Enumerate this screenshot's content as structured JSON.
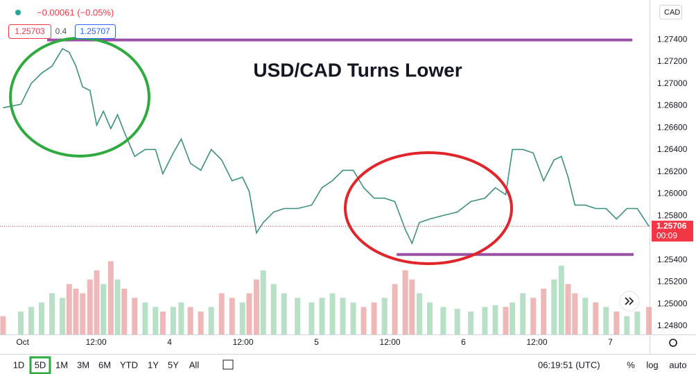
{
  "ui": {
    "change": "−0.00061 (−0.05%)",
    "bid": "1.25703",
    "spread": "0.4",
    "ask": "1.25707",
    "currency": "CAD",
    "ranges": [
      "1D",
      "5D",
      "1M",
      "3M",
      "6M",
      "YTD",
      "1Y",
      "5Y",
      "All"
    ],
    "selected_range": "5D",
    "clock": "06:19:51 (UTC)",
    "percent": "%",
    "log": "log",
    "auto": "auto"
  },
  "chart_data": {
    "type": "line",
    "title": "USD/CAD Turns Lower",
    "x": [
      -3.2,
      -0.3,
      1.4,
      3.1,
      4.8,
      6.5,
      7.6,
      8.7,
      9.8,
      11.0,
      12.1,
      13.2,
      14.4,
      15.5,
      16.6,
      18.3,
      20.0,
      21.7,
      22.9,
      24.6,
      25.9,
      27.4,
      29.1,
      30.8,
      32.5,
      34.2,
      35.9,
      37.0,
      38.2,
      39.3,
      41.0,
      42.7,
      44.9,
      47.2,
      48.9,
      50.6,
      52.3,
      54.0,
      55.7,
      57.4,
      59.1,
      60.8,
      62.5,
      63.6,
      64.8,
      66.5,
      68.7,
      71.0,
      73.2,
      75.5,
      77.2,
      78.9,
      80.0,
      81.7,
      83.4,
      85.1,
      86.8,
      88.0,
      89.1,
      90.2,
      91.9,
      93.6,
      95.3,
      97.0,
      98.7,
      100.4,
      102.3
    ],
    "series": [
      {
        "color": "#3d8f7e",
        "values": [
          1.26782,
          1.26813,
          1.27002,
          1.27097,
          1.2716,
          1.27318,
          1.27286,
          1.2716,
          1.26971,
          1.26939,
          1.26624,
          1.2675,
          1.26592,
          1.26719,
          1.26561,
          1.2634,
          1.26403,
          1.26403,
          1.26182,
          1.26371,
          1.26498,
          1.26277,
          1.26214,
          1.26403,
          1.26308,
          1.26119,
          1.26151,
          1.26024,
          1.25646,
          1.2574,
          1.25835,
          1.25867,
          1.25867,
          1.25898,
          1.26056,
          1.26119,
          1.26214,
          1.26214,
          1.26056,
          1.25961,
          1.25961,
          1.2593,
          1.25677,
          1.25551,
          1.2574,
          1.25772,
          1.25804,
          1.25835,
          1.2593,
          1.25961,
          1.26056,
          1.25993,
          1.26403,
          1.26403,
          1.26371,
          1.26119,
          1.26308,
          1.2634,
          1.26151,
          1.25898,
          1.25898,
          1.25867,
          1.25867,
          1.25772,
          1.25867,
          1.25867,
          1.25706
        ]
      },
      {
        "type": "bar",
        "axis": "y2",
        "color": "#e8a0a0",
        "values": [
          20,
          25,
          30,
          35,
          45,
          40,
          55,
          50,
          45,
          60,
          70,
          55,
          80,
          60,
          50,
          40,
          35,
          30,
          25,
          30,
          35,
          30,
          25,
          30,
          45,
          40,
          35,
          45,
          60,
          70,
          55,
          45,
          40,
          35,
          40,
          45,
          40,
          35,
          30,
          35,
          40,
          55,
          70,
          60,
          45,
          35,
          30,
          28,
          25,
          30,
          32,
          30,
          35,
          45,
          40,
          50,
          60,
          75,
          55,
          45,
          40,
          35,
          30,
          25,
          20,
          25,
          30
        ]
      }
    ],
    "xlim": [
      -3.7,
      102.4
    ],
    "xticks": [
      {
        "value": 0,
        "label": "Oct"
      },
      {
        "value": 12,
        "label": "12:00"
      },
      {
        "value": 24,
        "label": "4"
      },
      {
        "value": 36,
        "label": "12:00"
      },
      {
        "value": 48,
        "label": "5"
      },
      {
        "value": 60,
        "label": "12:00"
      },
      {
        "value": 72,
        "label": "6"
      },
      {
        "value": 84,
        "label": "12:00"
      },
      {
        "value": 96,
        "label": "7"
      }
    ],
    "ylim": [
      1.24724,
      1.2776
    ],
    "yticks": [
      {
        "value": 1.274,
        "label": "1.27400"
      },
      {
        "value": 1.272,
        "label": "1.27200"
      },
      {
        "value": 1.27,
        "label": "1.27000"
      },
      {
        "value": 1.268,
        "label": "1.26800"
      },
      {
        "value": 1.266,
        "label": "1.26600"
      },
      {
        "value": 1.264,
        "label": "1.26400"
      },
      {
        "value": 1.262,
        "label": "1.26200"
      },
      {
        "value": 1.26,
        "label": "1.26000"
      },
      {
        "value": 1.258,
        "label": "1.25800"
      },
      {
        "value": 1.254,
        "label": "1.25400"
      },
      {
        "value": 1.252,
        "label": "1.25200"
      },
      {
        "value": 1.25,
        "label": "1.25000"
      },
      {
        "value": 1.248,
        "label": "1.24800"
      }
    ],
    "y2lim": [
      0,
      100
    ],
    "grid": false,
    "last_price": 1.25706,
    "countdown": "00:09",
    "last_color": "#f23645",
    "hlines": [
      {
        "value": 1.27397,
        "x": [
          4.0,
          99.6
        ],
        "color": "#9c4fa8"
      },
      {
        "value": 1.2545,
        "x": [
          61.1,
          99.8
        ],
        "color": "#9c4fa8"
      }
    ]
  }
}
